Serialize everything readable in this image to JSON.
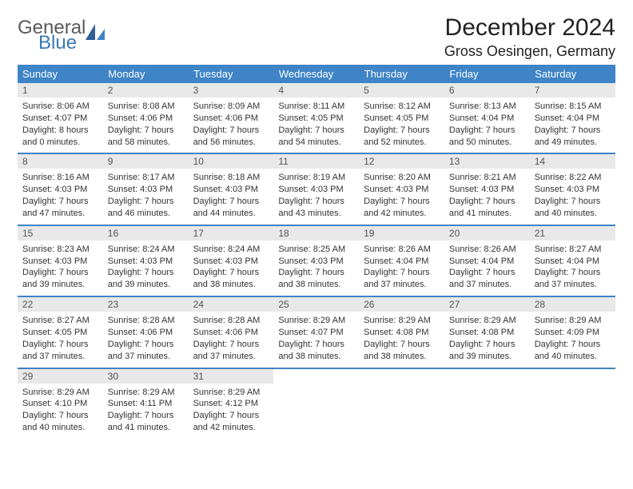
{
  "logo": {
    "line1": "General",
    "line2": "Blue"
  },
  "title": "December 2024",
  "location": "Gross Oesingen, Germany",
  "colors": {
    "header_bg": "#3e84c6",
    "header_text": "#ffffff",
    "daynum_bg": "#e8e8e8",
    "daynum_text": "#555555",
    "rule": "#3e84c6",
    "body_text": "#333333",
    "logo_gray": "#5a5a5a",
    "logo_blue": "#3b79b6",
    "background": "#ffffff"
  },
  "fonts": {
    "title_size_pt": 30,
    "location_size_pt": 18,
    "dow_size_pt": 13,
    "daynum_size_pt": 12,
    "body_size_pt": 11
  },
  "dow": [
    "Sunday",
    "Monday",
    "Tuesday",
    "Wednesday",
    "Thursday",
    "Friday",
    "Saturday"
  ],
  "weeks": [
    [
      {
        "n": "1",
        "sunrise": "Sunrise: 8:06 AM",
        "sunset": "Sunset: 4:07 PM",
        "day1": "Daylight: 8 hours",
        "day2": "and 0 minutes."
      },
      {
        "n": "2",
        "sunrise": "Sunrise: 8:08 AM",
        "sunset": "Sunset: 4:06 PM",
        "day1": "Daylight: 7 hours",
        "day2": "and 58 minutes."
      },
      {
        "n": "3",
        "sunrise": "Sunrise: 8:09 AM",
        "sunset": "Sunset: 4:06 PM",
        "day1": "Daylight: 7 hours",
        "day2": "and 56 minutes."
      },
      {
        "n": "4",
        "sunrise": "Sunrise: 8:11 AM",
        "sunset": "Sunset: 4:05 PM",
        "day1": "Daylight: 7 hours",
        "day2": "and 54 minutes."
      },
      {
        "n": "5",
        "sunrise": "Sunrise: 8:12 AM",
        "sunset": "Sunset: 4:05 PM",
        "day1": "Daylight: 7 hours",
        "day2": "and 52 minutes."
      },
      {
        "n": "6",
        "sunrise": "Sunrise: 8:13 AM",
        "sunset": "Sunset: 4:04 PM",
        "day1": "Daylight: 7 hours",
        "day2": "and 50 minutes."
      },
      {
        "n": "7",
        "sunrise": "Sunrise: 8:15 AM",
        "sunset": "Sunset: 4:04 PM",
        "day1": "Daylight: 7 hours",
        "day2": "and 49 minutes."
      }
    ],
    [
      {
        "n": "8",
        "sunrise": "Sunrise: 8:16 AM",
        "sunset": "Sunset: 4:03 PM",
        "day1": "Daylight: 7 hours",
        "day2": "and 47 minutes."
      },
      {
        "n": "9",
        "sunrise": "Sunrise: 8:17 AM",
        "sunset": "Sunset: 4:03 PM",
        "day1": "Daylight: 7 hours",
        "day2": "and 46 minutes."
      },
      {
        "n": "10",
        "sunrise": "Sunrise: 8:18 AM",
        "sunset": "Sunset: 4:03 PM",
        "day1": "Daylight: 7 hours",
        "day2": "and 44 minutes."
      },
      {
        "n": "11",
        "sunrise": "Sunrise: 8:19 AM",
        "sunset": "Sunset: 4:03 PM",
        "day1": "Daylight: 7 hours",
        "day2": "and 43 minutes."
      },
      {
        "n": "12",
        "sunrise": "Sunrise: 8:20 AM",
        "sunset": "Sunset: 4:03 PM",
        "day1": "Daylight: 7 hours",
        "day2": "and 42 minutes."
      },
      {
        "n": "13",
        "sunrise": "Sunrise: 8:21 AM",
        "sunset": "Sunset: 4:03 PM",
        "day1": "Daylight: 7 hours",
        "day2": "and 41 minutes."
      },
      {
        "n": "14",
        "sunrise": "Sunrise: 8:22 AM",
        "sunset": "Sunset: 4:03 PM",
        "day1": "Daylight: 7 hours",
        "day2": "and 40 minutes."
      }
    ],
    [
      {
        "n": "15",
        "sunrise": "Sunrise: 8:23 AM",
        "sunset": "Sunset: 4:03 PM",
        "day1": "Daylight: 7 hours",
        "day2": "and 39 minutes."
      },
      {
        "n": "16",
        "sunrise": "Sunrise: 8:24 AM",
        "sunset": "Sunset: 4:03 PM",
        "day1": "Daylight: 7 hours",
        "day2": "and 39 minutes."
      },
      {
        "n": "17",
        "sunrise": "Sunrise: 8:24 AM",
        "sunset": "Sunset: 4:03 PM",
        "day1": "Daylight: 7 hours",
        "day2": "and 38 minutes."
      },
      {
        "n": "18",
        "sunrise": "Sunrise: 8:25 AM",
        "sunset": "Sunset: 4:03 PM",
        "day1": "Daylight: 7 hours",
        "day2": "and 38 minutes."
      },
      {
        "n": "19",
        "sunrise": "Sunrise: 8:26 AM",
        "sunset": "Sunset: 4:04 PM",
        "day1": "Daylight: 7 hours",
        "day2": "and 37 minutes."
      },
      {
        "n": "20",
        "sunrise": "Sunrise: 8:26 AM",
        "sunset": "Sunset: 4:04 PM",
        "day1": "Daylight: 7 hours",
        "day2": "and 37 minutes."
      },
      {
        "n": "21",
        "sunrise": "Sunrise: 8:27 AM",
        "sunset": "Sunset: 4:04 PM",
        "day1": "Daylight: 7 hours",
        "day2": "and 37 minutes."
      }
    ],
    [
      {
        "n": "22",
        "sunrise": "Sunrise: 8:27 AM",
        "sunset": "Sunset: 4:05 PM",
        "day1": "Daylight: 7 hours",
        "day2": "and 37 minutes."
      },
      {
        "n": "23",
        "sunrise": "Sunrise: 8:28 AM",
        "sunset": "Sunset: 4:06 PM",
        "day1": "Daylight: 7 hours",
        "day2": "and 37 minutes."
      },
      {
        "n": "24",
        "sunrise": "Sunrise: 8:28 AM",
        "sunset": "Sunset: 4:06 PM",
        "day1": "Daylight: 7 hours",
        "day2": "and 37 minutes."
      },
      {
        "n": "25",
        "sunrise": "Sunrise: 8:29 AM",
        "sunset": "Sunset: 4:07 PM",
        "day1": "Daylight: 7 hours",
        "day2": "and 38 minutes."
      },
      {
        "n": "26",
        "sunrise": "Sunrise: 8:29 AM",
        "sunset": "Sunset: 4:08 PM",
        "day1": "Daylight: 7 hours",
        "day2": "and 38 minutes."
      },
      {
        "n": "27",
        "sunrise": "Sunrise: 8:29 AM",
        "sunset": "Sunset: 4:08 PM",
        "day1": "Daylight: 7 hours",
        "day2": "and 39 minutes."
      },
      {
        "n": "28",
        "sunrise": "Sunrise: 8:29 AM",
        "sunset": "Sunset: 4:09 PM",
        "day1": "Daylight: 7 hours",
        "day2": "and 40 minutes."
      }
    ],
    [
      {
        "n": "29",
        "sunrise": "Sunrise: 8:29 AM",
        "sunset": "Sunset: 4:10 PM",
        "day1": "Daylight: 7 hours",
        "day2": "and 40 minutes."
      },
      {
        "n": "30",
        "sunrise": "Sunrise: 8:29 AM",
        "sunset": "Sunset: 4:11 PM",
        "day1": "Daylight: 7 hours",
        "day2": "and 41 minutes."
      },
      {
        "n": "31",
        "sunrise": "Sunrise: 8:29 AM",
        "sunset": "Sunset: 4:12 PM",
        "day1": "Daylight: 7 hours",
        "day2": "and 42 minutes."
      },
      null,
      null,
      null,
      null
    ]
  ]
}
